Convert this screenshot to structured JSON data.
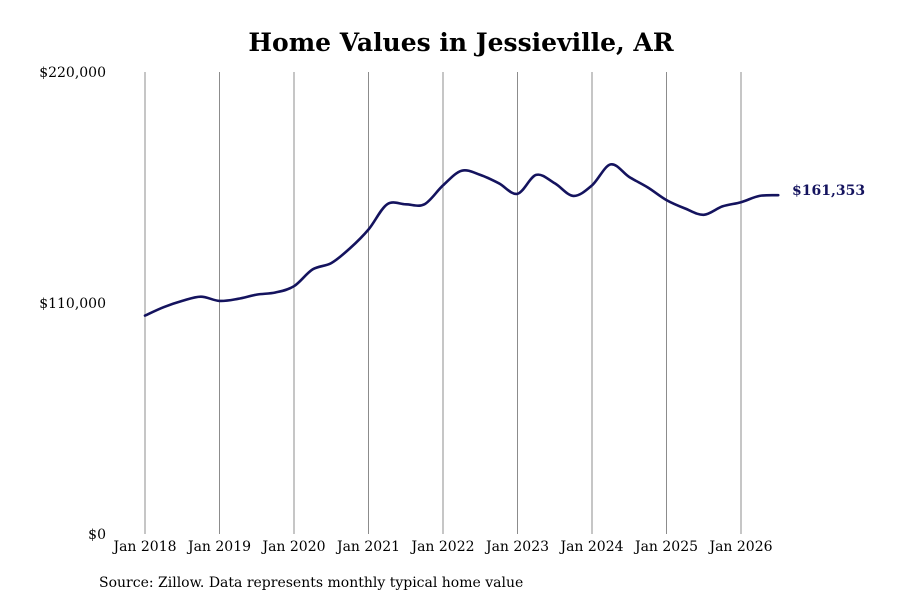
{
  "chart_data": {
    "type": "line",
    "title": "Home Values in Jessieville, AR",
    "xlabel": "",
    "ylabel": "",
    "ylim": [
      0,
      220000
    ],
    "yticks": [
      {
        "value": 0,
        "label": "$0"
      },
      {
        "value": 110000,
        "label": "$110,000"
      },
      {
        "value": 220000,
        "label": "$220,000"
      }
    ],
    "xlim": [
      "2018-01",
      "2026-07"
    ],
    "xticks": [
      {
        "value": "2018-01",
        "label": "Jan 2018"
      },
      {
        "value": "2019-01",
        "label": "Jan 2019"
      },
      {
        "value": "2020-01",
        "label": "Jan 2020"
      },
      {
        "value": "2021-01",
        "label": "Jan 2021"
      },
      {
        "value": "2022-01",
        "label": "Jan 2022"
      },
      {
        "value": "2023-01",
        "label": "Jan 2023"
      },
      {
        "value": "2024-01",
        "label": "Jan 2024"
      },
      {
        "value": "2025-01",
        "label": "Jan 2025"
      },
      {
        "value": "2026-01",
        "label": "Jan 2026"
      }
    ],
    "grid": "vertical",
    "series": [
      {
        "color": "#14135e",
        "x": [
          "2018-01",
          "2018-04",
          "2018-07",
          "2018-10",
          "2019-01",
          "2019-04",
          "2019-07",
          "2019-10",
          "2020-01",
          "2020-04",
          "2020-07",
          "2020-10",
          "2021-01",
          "2021-04",
          "2021-07",
          "2021-10",
          "2022-01",
          "2022-04",
          "2022-07",
          "2022-10",
          "2023-01",
          "2023-04",
          "2023-07",
          "2023-10",
          "2024-01",
          "2024-04",
          "2024-07",
          "2024-10",
          "2025-01",
          "2025-04",
          "2025-07",
          "2025-10",
          "2026-01",
          "2026-04",
          "2026-07"
        ],
        "values": [
          104000,
          108000,
          111000,
          113000,
          111000,
          112000,
          114000,
          115000,
          118000,
          126000,
          129000,
          136000,
          145000,
          157000,
          157000,
          157000,
          166000,
          173000,
          171000,
          167000,
          162000,
          171000,
          167000,
          161000,
          166000,
          176000,
          170000,
          165000,
          159000,
          155000,
          152000,
          156000,
          158000,
          161000,
          161353
        ]
      }
    ],
    "end_label": "$161,353",
    "source": "Source: Zillow. Data represents monthly typical home value"
  }
}
